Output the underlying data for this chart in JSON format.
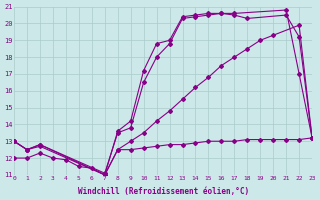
{
  "xlabel": "Windchill (Refroidissement éolien,°C)",
  "xlim": [
    0,
    23
  ],
  "ylim": [
    11,
    21
  ],
  "yticks": [
    11,
    12,
    13,
    14,
    15,
    16,
    17,
    18,
    19,
    20,
    21
  ],
  "xticks": [
    0,
    1,
    2,
    3,
    4,
    5,
    6,
    7,
    8,
    9,
    10,
    11,
    12,
    13,
    14,
    15,
    16,
    17,
    18,
    19,
    20,
    21,
    22,
    23
  ],
  "bg_color": "#cce8e8",
  "grid_color": "#aacccc",
  "line_color": "#880088",
  "lines": [
    {
      "x": [
        0,
        1,
        2,
        7,
        8,
        9,
        10,
        11,
        12,
        13,
        14,
        15,
        16,
        17,
        21,
        22,
        23
      ],
      "y": [
        13.0,
        12.5,
        12.8,
        11.0,
        13.6,
        14.2,
        17.2,
        18.8,
        19.0,
        20.4,
        20.5,
        20.6,
        20.6,
        20.6,
        20.8,
        17.0,
        13.2
      ],
      "marker": "D",
      "markersize": 2.0,
      "linewidth": 0.8
    },
    {
      "x": [
        0,
        1,
        2,
        7,
        8,
        9,
        10,
        11,
        12,
        13,
        14,
        15,
        16,
        17,
        18,
        21,
        22,
        23
      ],
      "y": [
        13.0,
        12.5,
        12.8,
        11.1,
        13.5,
        13.8,
        16.5,
        18.0,
        18.8,
        20.3,
        20.4,
        20.5,
        20.6,
        20.5,
        20.3,
        20.5,
        19.2,
        13.2
      ],
      "marker": "D",
      "markersize": 2.0,
      "linewidth": 0.8
    },
    {
      "x": [
        0,
        1,
        2,
        7,
        8,
        9,
        10,
        11,
        12,
        13,
        14,
        15,
        16,
        17,
        18,
        19,
        20,
        22,
        23
      ],
      "y": [
        13.0,
        12.5,
        12.7,
        11.0,
        12.5,
        13.0,
        13.5,
        14.2,
        14.8,
        15.5,
        16.2,
        16.8,
        17.5,
        18.0,
        18.5,
        19.0,
        19.3,
        19.9,
        13.2
      ],
      "marker": "D",
      "markersize": 2.0,
      "linewidth": 0.8
    },
    {
      "x": [
        0,
        1,
        2,
        3,
        4,
        5,
        6,
        7,
        8,
        9,
        10,
        11,
        12,
        13,
        14,
        15,
        16,
        17,
        18,
        19,
        20,
        21,
        22,
        23
      ],
      "y": [
        12.0,
        12.0,
        12.3,
        12.0,
        11.9,
        11.5,
        11.4,
        11.0,
        12.5,
        12.5,
        12.6,
        12.7,
        12.8,
        12.8,
        12.9,
        13.0,
        13.0,
        13.0,
        13.1,
        13.1,
        13.1,
        13.1,
        13.1,
        13.2
      ],
      "marker": "D",
      "markersize": 2.0,
      "linewidth": 0.8
    }
  ]
}
